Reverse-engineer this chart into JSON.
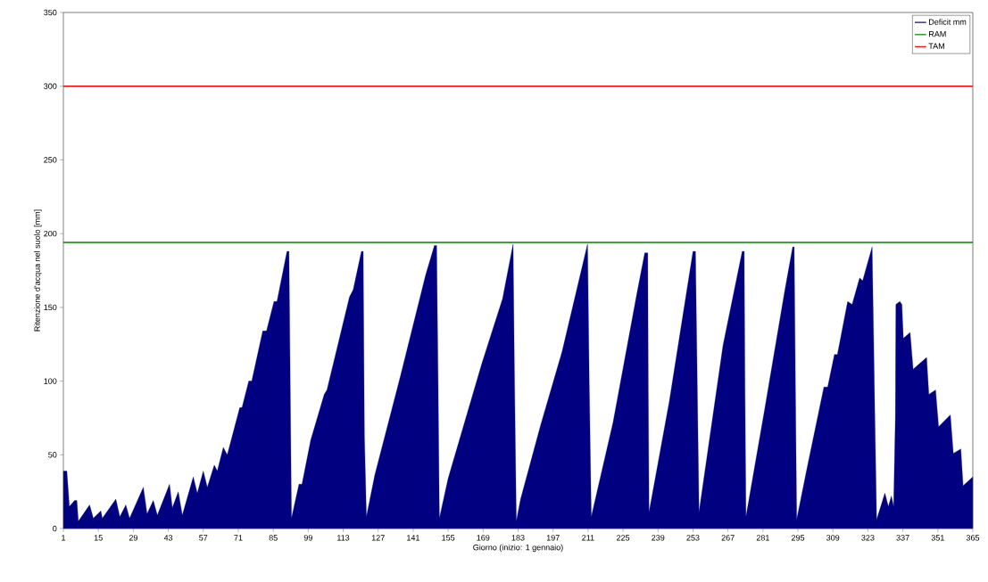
{
  "chart_data": {
    "type": "area",
    "xlabel": "Giorno (inizio: 1 gennaio)",
    "ylabel": "Ritenzione d'acqua nel suolo [mm]",
    "xlim": [
      1,
      365
    ],
    "xticks": [
      1,
      15,
      29,
      43,
      57,
      71,
      85,
      99,
      113,
      127,
      141,
      155,
      169,
      183,
      197,
      211,
      225,
      239,
      253,
      267,
      281,
      295,
      309,
      323,
      337,
      351,
      365
    ],
    "ylim": [
      0,
      350
    ],
    "yticks": [
      0,
      50,
      100,
      150,
      200,
      250,
      300,
      350
    ],
    "grid": false,
    "legend": "top right",
    "series": [
      {
        "name": "Deficit mm",
        "color": "#000080",
        "x": [
          1,
          2.4,
          3.4,
          5.5,
          6.4,
          7,
          11.5,
          13,
          16,
          16.6,
          22,
          23.6,
          26,
          27.5,
          33,
          34.5,
          37,
          38.6,
          43.5,
          44.6,
          47,
          48.6,
          53,
          54.6,
          57,
          58.6,
          61.4,
          62.6,
          65,
          66.6,
          71.6,
          72.5,
          75.2,
          76.4,
          80.8,
          82.3,
          85.3,
          86.5,
          90.5,
          91.3,
          92,
          92.3,
          95.3,
          96.5,
          100,
          105.4,
          106.5,
          115.5,
          117,
          120.3,
          121,
          121.5,
          122.3,
          125.6,
          136,
          146,
          149.5,
          150.4,
          151,
          151.5,
          155,
          168.5,
          176.8,
          181,
          181.6,
          182.3,
          184,
          192,
          200.6,
          210.8,
          211.5,
          212.3,
          221,
          230.4,
          233.7,
          234.9,
          235.1,
          235.4,
          243.5,
          253,
          254,
          254.5,
          255,
          255.4,
          265,
          272.7,
          273.5,
          273.8,
          274.2,
          281.6,
          289.7,
          292.9,
          293.5,
          294,
          294.5,
          298.9,
          305.4,
          306.9,
          309.6,
          310.8,
          314.9,
          316.7,
          319.7,
          320.9,
          324.7,
          325.3,
          325.9,
          326.5,
          329.8,
          331.2,
          332.4,
          333.3,
          334,
          334.2,
          335.8,
          336.6,
          337.2,
          339.9,
          341.1,
          346.5,
          347.4,
          350.1,
          351.3,
          356,
          357.2,
          360.2,
          361.1,
          365
        ],
        "values": [
          39,
          39,
          15,
          19,
          19,
          5,
          16,
          7,
          12,
          7,
          20,
          8,
          16,
          7,
          28,
          10,
          19,
          9,
          30,
          14,
          25,
          9,
          35,
          24,
          39,
          28,
          43,
          39,
          55,
          50,
          82,
          82,
          100,
          100,
          134,
          134,
          154,
          154,
          188,
          188,
          62,
          7,
          30,
          30,
          60,
          91,
          94,
          157,
          162,
          188,
          188,
          62,
          8,
          36,
          104,
          172,
          192,
          192,
          96,
          7,
          34,
          112,
          156,
          193,
          96,
          5,
          20,
          70,
          120,
          193,
          96,
          8,
          72,
          158,
          187,
          187,
          94,
          11,
          86,
          188,
          188,
          124,
          62,
          11,
          124,
          188,
          188,
          94,
          8,
          80,
          161,
          191,
          191,
          96,
          6,
          43,
          96,
          96,
          118,
          118,
          154,
          152,
          170,
          168,
          191,
          128,
          64,
          6,
          24,
          15,
          22,
          15,
          76,
          152,
          154,
          152,
          129,
          133,
          108,
          116,
          91,
          94,
          69,
          77,
          51,
          54,
          29,
          35
        ]
      }
    ],
    "ref_lines": [
      {
        "axis": "y",
        "value": 194,
        "label": "RAM",
        "color": "#008000"
      },
      {
        "axis": "y",
        "value": 300,
        "label": "TAM",
        "color": "#ff0000"
      }
    ]
  }
}
